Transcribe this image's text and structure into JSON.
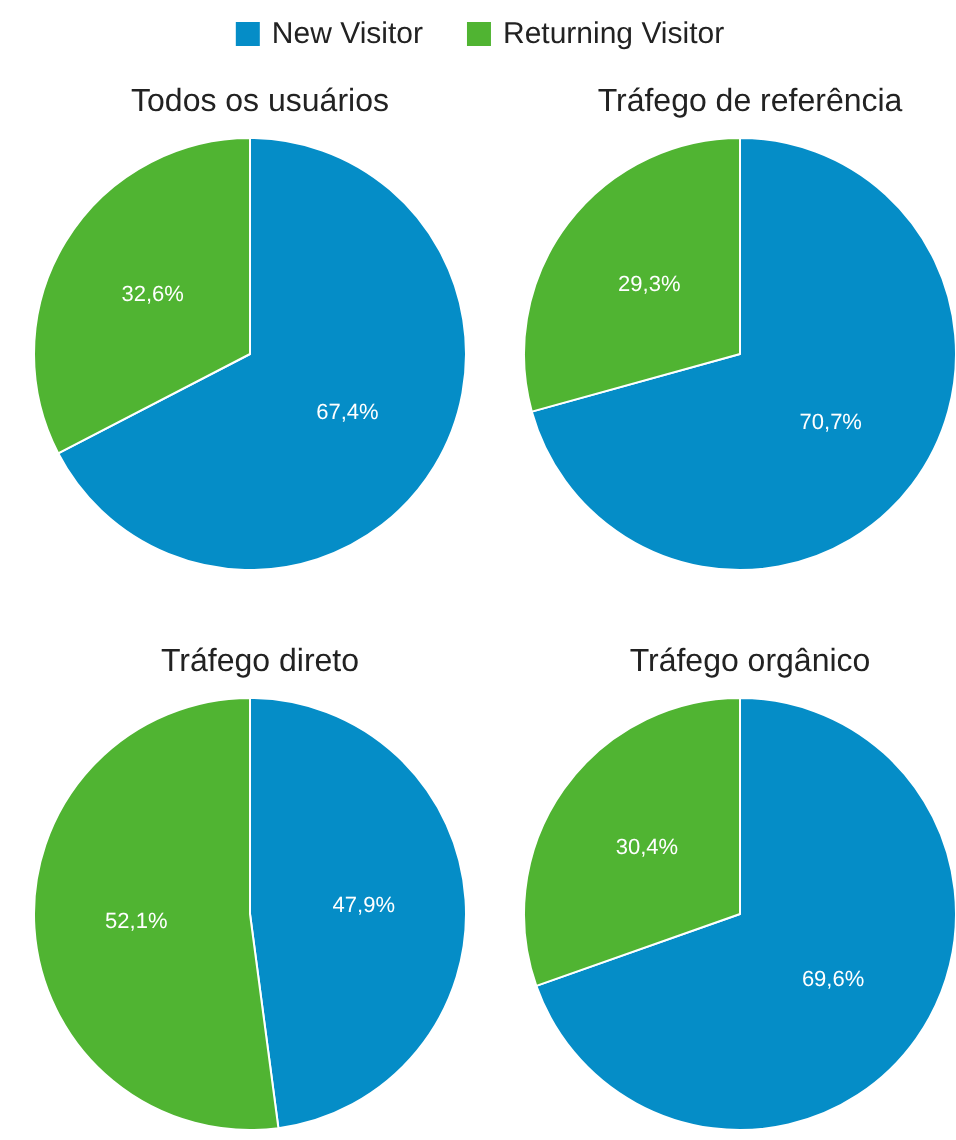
{
  "chart_data": [
    {
      "type": "pie",
      "title": "Todos os usuários",
      "categories": [
        "New Visitor",
        "Returning Visitor"
      ],
      "values": [
        67.4,
        32.6
      ],
      "colors": [
        "#058dc7",
        "#50b432"
      ],
      "value_labels": [
        "67,4%",
        "32,6%"
      ],
      "legend": "top"
    },
    {
      "type": "pie",
      "title": "Tráfego de referência",
      "categories": [
        null,
        null
      ],
      "values": [
        70.7,
        29.3
      ],
      "colors": [
        "#058dc7",
        "#50b432"
      ],
      "value_labels": [
        "70,7%",
        "29,3%"
      ]
    },
    {
      "type": "pie",
      "title": "Tráfego direto",
      "categories": [
        null,
        null
      ],
      "values": [
        47.9,
        52.1
      ],
      "colors": [
        "#058dc7",
        "#50b432"
      ],
      "value_labels": [
        "47,9%",
        "52,1%"
      ]
    },
    {
      "type": "pie",
      "title": "Tráfego orgânico",
      "categories": [
        null,
        null
      ],
      "values": [
        69.6,
        30.4
      ],
      "colors": [
        "#058dc7",
        "#50b432"
      ],
      "value_labels": [
        "69,6%",
        "30,4%"
      ]
    }
  ]
}
